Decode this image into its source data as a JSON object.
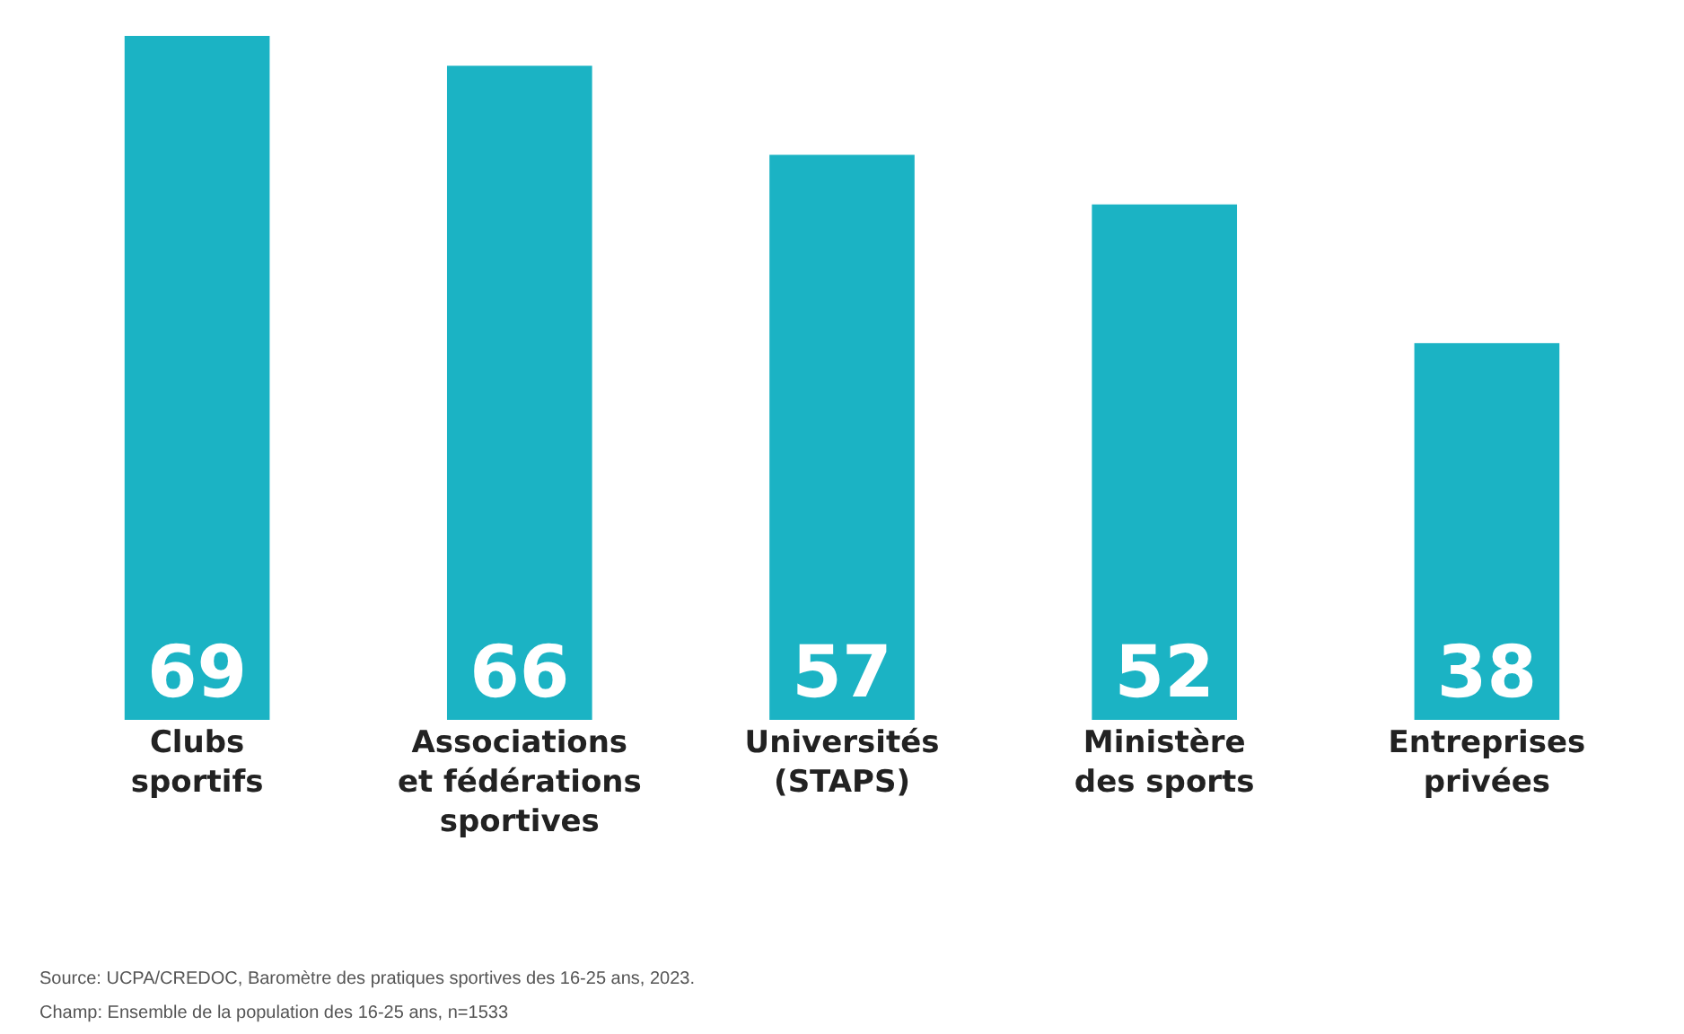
{
  "chart_data": {
    "type": "bar",
    "categories": [
      "Clubs sportifs",
      "Associations et fédérations sportives",
      "Universités (STAPS)",
      "Ministère des sports",
      "Entreprises privées"
    ],
    "values": [
      69,
      66,
      57,
      52,
      38
    ],
    "color": "#1bb3c4",
    "data_labels": true,
    "annotations": [
      "Source: UCPA/CREDOC, Baromètre des pratiques sportives des 16-25 ans, 2023.",
      "Champ: Ensemble de la population des 16-25 ans, n=1533"
    ]
  }
}
